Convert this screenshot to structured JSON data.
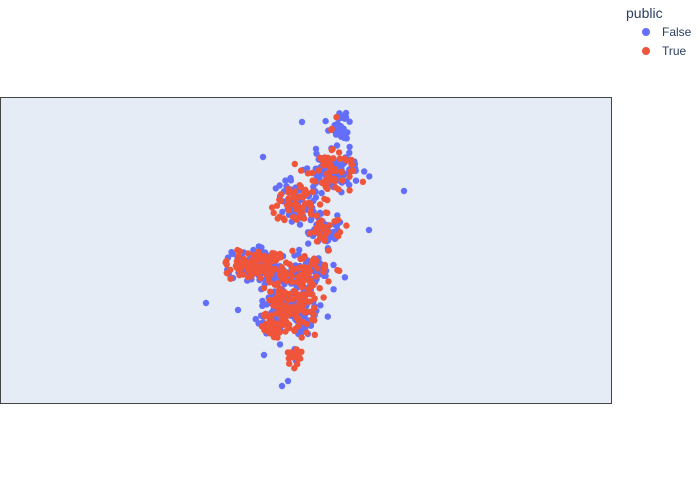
{
  "chart_data": {
    "type": "scatter",
    "subtype": "scatter_geo",
    "legend_title": "public",
    "legend_position": "top-right",
    "map_background": "#e5ecf6",
    "map_frame": "#444444",
    "series": [
      {
        "name": "False",
        "color": "#636efa"
      },
      {
        "name": "True",
        "color": "#ef553b"
      }
    ]
  }
}
